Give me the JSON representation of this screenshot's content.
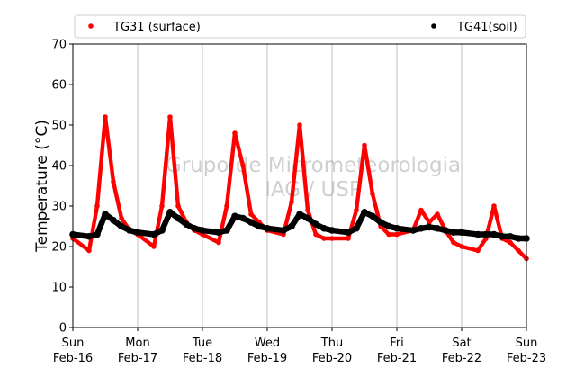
{
  "chart_data": {
    "type": "scatter",
    "ylabel": "Temperature (°C)",
    "xlabel": "",
    "ylim": [
      0,
      70
    ],
    "yticks": [
      0,
      10,
      20,
      30,
      40,
      50,
      60,
      70
    ],
    "x_range": [
      "2020-02-16 00:00",
      "2020-02-23 00:00"
    ],
    "xtick_labels": [
      [
        "Sun",
        "Feb-16"
      ],
      [
        "Mon",
        "Feb-17"
      ],
      [
        "Tue",
        "Feb-18"
      ],
      [
        "Wed",
        "Feb-19"
      ],
      [
        "Thu",
        "Feb-20"
      ],
      [
        "Fri",
        "Feb-21"
      ],
      [
        "Sat",
        "Feb-22"
      ],
      [
        "Sun",
        "Feb-23"
      ]
    ],
    "grid": "vertical",
    "legend": {
      "placement": "top",
      "columns": 2
    },
    "watermark": [
      "Grupo de Micrometeorologia",
      "IAG / USP"
    ],
    "series": [
      {
        "name": "TG31 (surface)",
        "color": "#ff0000",
        "x": [
          "Feb-16 00:00",
          "Feb-16 06:00",
          "Feb-16 09:00",
          "Feb-16 12:00",
          "Feb-16 15:00",
          "Feb-16 18:00",
          "Feb-16 21:00",
          "Feb-17 00:00",
          "Feb-17 06:00",
          "Feb-17 09:00",
          "Feb-17 12:00",
          "Feb-17 15:00",
          "Feb-17 18:00",
          "Feb-17 21:00",
          "Feb-18 00:00",
          "Feb-18 06:00",
          "Feb-18 09:00",
          "Feb-18 12:00",
          "Feb-18 15:00",
          "Feb-18 18:00",
          "Feb-18 21:00",
          "Feb-19 00:00",
          "Feb-19 06:00",
          "Feb-19 09:00",
          "Feb-19 12:00",
          "Feb-19 15:00",
          "Feb-19 18:00",
          "Feb-19 21:00",
          "Feb-20 00:00",
          "Feb-20 06:00",
          "Feb-20 09:00",
          "Feb-20 12:00",
          "Feb-20 15:00",
          "Feb-20 18:00",
          "Feb-20 21:00",
          "Feb-21 00:00",
          "Feb-21 06:00",
          "Feb-21 09:00",
          "Feb-21 12:00",
          "Feb-21 15:00",
          "Feb-21 18:00",
          "Feb-21 21:00",
          "Feb-22 00:00",
          "Feb-22 06:00",
          "Feb-22 09:00",
          "Feb-22 12:00",
          "Feb-22 15:00",
          "Feb-22 18:00",
          "Feb-22 21:00",
          "Feb-23 00:00"
        ],
        "values": [
          22,
          19,
          30,
          52,
          36,
          27,
          24,
          23,
          20,
          30,
          52,
          30,
          26,
          24,
          23,
          21,
          30,
          48,
          40,
          28,
          26,
          24,
          23,
          31,
          50,
          29,
          23,
          22,
          22,
          22,
          29,
          45,
          33,
          25,
          23,
          23,
          24,
          29,
          26,
          28,
          24,
          21,
          20,
          19,
          22,
          30,
          22,
          21,
          19,
          17
        ]
      },
      {
        "name": "TG41(soil)",
        "color": "#000000",
        "x": [
          "Feb-16 00:00",
          "Feb-16 06:00",
          "Feb-16 09:00",
          "Feb-16 12:00",
          "Feb-16 15:00",
          "Feb-16 18:00",
          "Feb-16 21:00",
          "Feb-17 00:00",
          "Feb-17 06:00",
          "Feb-17 09:00",
          "Feb-17 12:00",
          "Feb-17 15:00",
          "Feb-17 18:00",
          "Feb-17 21:00",
          "Feb-18 00:00",
          "Feb-18 06:00",
          "Feb-18 09:00",
          "Feb-18 12:00",
          "Feb-18 15:00",
          "Feb-18 18:00",
          "Feb-18 21:00",
          "Feb-19 00:00",
          "Feb-19 06:00",
          "Feb-19 09:00",
          "Feb-19 12:00",
          "Feb-19 15:00",
          "Feb-19 18:00",
          "Feb-19 21:00",
          "Feb-20 00:00",
          "Feb-20 06:00",
          "Feb-20 09:00",
          "Feb-20 12:00",
          "Feb-20 15:00",
          "Feb-20 18:00",
          "Feb-20 21:00",
          "Feb-21 00:00",
          "Feb-21 06:00",
          "Feb-21 09:00",
          "Feb-21 12:00",
          "Feb-21 15:00",
          "Feb-21 18:00",
          "Feb-21 21:00",
          "Feb-22 00:00",
          "Feb-22 06:00",
          "Feb-22 09:00",
          "Feb-22 12:00",
          "Feb-22 15:00",
          "Feb-22 18:00",
          "Feb-22 21:00",
          "Feb-23 00:00"
        ],
        "values": [
          23,
          22.5,
          23,
          28,
          26.5,
          25,
          24,
          23.5,
          23,
          24,
          28.5,
          27,
          25.5,
          24.5,
          24,
          23.5,
          24,
          27.5,
          27,
          26,
          25,
          24.5,
          24,
          25,
          28,
          27,
          25.5,
          24.5,
          24,
          23.5,
          24.5,
          28.5,
          27.5,
          26,
          25,
          24.5,
          24,
          24.5,
          24.8,
          24.5,
          24,
          23.5,
          23.5,
          23,
          23,
          23,
          22.5,
          22.5,
          22,
          22
        ]
      }
    ]
  }
}
